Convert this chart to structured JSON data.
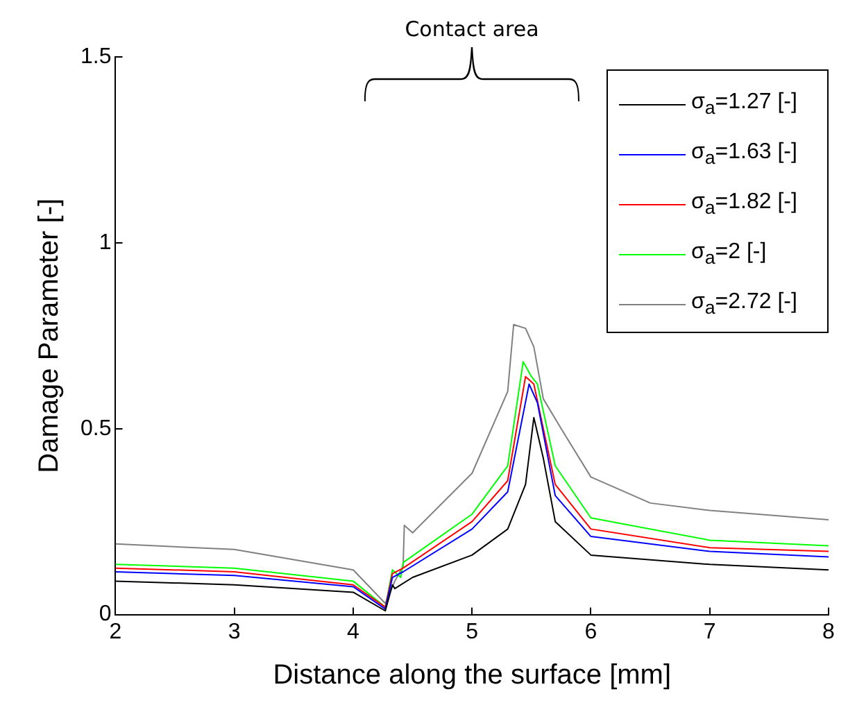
{
  "chart_data": {
    "type": "line",
    "xlabel": "Distance along the surface [mm]",
    "ylabel": "Damage Parameter [-]",
    "annotations": [
      "Contact area"
    ],
    "xlim": [
      2,
      8
    ],
    "xticks": [
      2,
      3,
      4,
      5,
      6,
      7,
      8
    ],
    "ylim": [
      0,
      1.5
    ],
    "yticks": [
      0,
      0.5,
      1,
      1.5
    ],
    "grid": false,
    "legend": "top right",
    "marker": "none",
    "line_style": "solid",
    "series": [
      {
        "name": "σ$_{a}$=1.27 [-]",
        "color": "#000000",
        "x": [
          2,
          3,
          4,
          4.27,
          4.33,
          4.35,
          4.5,
          5,
          5.3,
          5.45,
          5.52,
          5.6,
          5.7,
          6,
          7,
          8
        ],
        "values": [
          0.09,
          0.08,
          0.06,
          0.01,
          0.08,
          0.07,
          0.1,
          0.16,
          0.23,
          0.35,
          0.53,
          0.42,
          0.25,
          0.16,
          0.135,
          0.12
        ]
      },
      {
        "name": "σ$_{a}$=1.63 [-]",
        "color": "#0000ff",
        "x": [
          2,
          3,
          4,
          4.27,
          4.33,
          4.42,
          5,
          5.3,
          5.48,
          5.55,
          5.7,
          6,
          7,
          8
        ],
        "values": [
          0.115,
          0.105,
          0.075,
          0.015,
          0.1,
          0.115,
          0.23,
          0.33,
          0.62,
          0.57,
          0.32,
          0.21,
          0.17,
          0.155
        ]
      },
      {
        "name": "σ$_{a}$=1.82 [-]",
        "color": "#ff0000",
        "x": [
          2,
          3,
          4,
          4.27,
          4.33,
          4.42,
          5,
          5.3,
          5.45,
          5.52,
          5.7,
          6,
          7,
          8
        ],
        "values": [
          0.125,
          0.115,
          0.08,
          0.02,
          0.11,
          0.125,
          0.25,
          0.36,
          0.64,
          0.62,
          0.35,
          0.23,
          0.18,
          0.17
        ]
      },
      {
        "name": "σ$_{a}$=2 [-]",
        "color": "#00ff00",
        "x": [
          2,
          3,
          4,
          4.27,
          4.33,
          4.4,
          4.42,
          5,
          5.3,
          5.43,
          5.5,
          5.55,
          5.7,
          6,
          7,
          8
        ],
        "values": [
          0.135,
          0.125,
          0.09,
          0.02,
          0.12,
          0.1,
          0.14,
          0.27,
          0.4,
          0.68,
          0.64,
          0.62,
          0.4,
          0.26,
          0.2,
          0.185
        ]
      },
      {
        "name": "σ$_{a}$=2.72 [-]",
        "color": "#808080",
        "x": [
          2,
          3,
          4,
          4.27,
          4.35,
          4.42,
          4.43,
          4.5,
          5,
          5.3,
          5.35,
          5.45,
          5.52,
          5.6,
          5.75,
          6,
          6.5,
          7,
          8
        ],
        "values": [
          0.19,
          0.175,
          0.12,
          0.03,
          0.09,
          0.13,
          0.24,
          0.22,
          0.38,
          0.6,
          0.78,
          0.77,
          0.72,
          0.58,
          0.5,
          0.37,
          0.3,
          0.28,
          0.255
        ]
      }
    ]
  }
}
